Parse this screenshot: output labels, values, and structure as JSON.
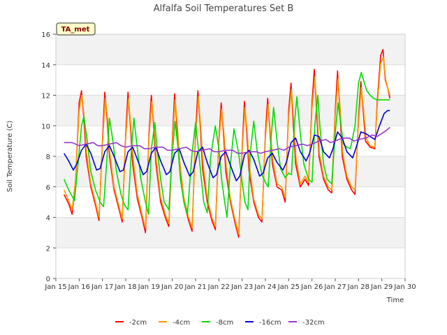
{
  "chart_data": {
    "type": "line",
    "title": "Alfalfa Soil Temperatures Set B",
    "xlabel": "Time",
    "ylabel": "Soil Temperature (C)",
    "badge": "TA_met",
    "ylim": [
      0,
      16
    ],
    "y_ticks": [
      0,
      2,
      4,
      6,
      8,
      10,
      12,
      14,
      16
    ],
    "xlim": [
      15,
      30
    ],
    "x_ticks": [
      15,
      16,
      17,
      18,
      19,
      20,
      21,
      22,
      23,
      24,
      25,
      26,
      27,
      28,
      29,
      30
    ],
    "x_tick_labels": [
      "Jan 15",
      "Jan 16",
      "Jan 17",
      "Jan 18",
      "Jan 19",
      "Jan 20",
      "Jan 21",
      "Jan 22",
      "Jan 23",
      "Jan 24",
      "Jan 25",
      "Jan 26",
      "Jan 27",
      "Jan 28",
      "Jan 29",
      "Jan 30"
    ],
    "grid": "horizontal bands",
    "legend_position": "bottom",
    "series": [
      {
        "name": "-2cm",
        "color": "#ff0000",
        "x": [
          15.35,
          15.55,
          15.7,
          15.85,
          16.0,
          16.1,
          16.2,
          16.3,
          16.5,
          16.7,
          16.85,
          17.0,
          17.1,
          17.2,
          17.3,
          17.5,
          17.7,
          17.85,
          18.0,
          18.1,
          18.2,
          18.3,
          18.5,
          18.7,
          18.85,
          19.0,
          19.1,
          19.2,
          19.3,
          19.5,
          19.7,
          19.85,
          20.0,
          20.1,
          20.2,
          20.3,
          20.5,
          20.7,
          20.85,
          21.0,
          21.1,
          21.2,
          21.3,
          21.5,
          21.7,
          21.85,
          22.0,
          22.1,
          22.2,
          22.3,
          22.5,
          22.7,
          22.85,
          23.0,
          23.1,
          23.2,
          23.3,
          23.5,
          23.7,
          23.85,
          24.0,
          24.1,
          24.2,
          24.3,
          24.5,
          24.7,
          24.85,
          25.0,
          25.1,
          25.2,
          25.3,
          25.5,
          25.7,
          25.85,
          26.0,
          26.1,
          26.2,
          26.3,
          26.5,
          26.7,
          26.85,
          27.0,
          27.1,
          27.2,
          27.3,
          27.5,
          27.7,
          27.85,
          28.0,
          28.1,
          28.2,
          28.3,
          28.5,
          28.7,
          28.8,
          28.95,
          29.05,
          29.15,
          29.25,
          29.35
        ],
        "y": [
          5.5,
          4.9,
          4.2,
          6.5,
          11.5,
          12.3,
          10.5,
          8.0,
          6.0,
          4.8,
          3.8,
          9.0,
          12.2,
          10.5,
          8.0,
          5.8,
          4.6,
          3.7,
          9.5,
          12.2,
          10.0,
          7.5,
          5.2,
          4.0,
          3.0,
          9.5,
          12.0,
          10.0,
          7.5,
          5.0,
          4.0,
          3.4,
          9.0,
          12.1,
          10.0,
          7.5,
          5.0,
          3.8,
          3.1,
          9.5,
          12.3,
          10.0,
          7.2,
          5.0,
          3.8,
          3.2,
          9.0,
          11.5,
          9.5,
          7.0,
          5.0,
          3.6,
          2.7,
          8.5,
          11.6,
          9.5,
          7.0,
          5.0,
          4.0,
          3.7,
          9.5,
          11.8,
          9.5,
          7.5,
          6.0,
          5.8,
          5.0,
          11.0,
          12.8,
          10.0,
          7.5,
          6.0,
          6.5,
          6.1,
          11.5,
          13.7,
          11.0,
          8.0,
          6.5,
          5.8,
          5.6,
          11.0,
          13.6,
          11.0,
          8.0,
          6.5,
          5.8,
          5.5,
          10.5,
          12.9,
          11.0,
          9.0,
          8.6,
          8.5,
          11.5,
          14.6,
          15.0,
          13.0,
          12.5,
          11.8
        ]
      },
      {
        "name": "-4cm",
        "color": "#ff9900",
        "x": [
          15.35,
          15.55,
          15.7,
          15.85,
          16.0,
          16.12,
          16.22,
          16.32,
          16.5,
          16.7,
          16.85,
          17.0,
          17.12,
          17.22,
          17.32,
          17.5,
          17.7,
          17.85,
          18.0,
          18.12,
          18.22,
          18.32,
          18.5,
          18.7,
          18.85,
          19.0,
          19.12,
          19.22,
          19.32,
          19.5,
          19.7,
          19.85,
          20.0,
          20.12,
          20.22,
          20.32,
          20.5,
          20.7,
          20.85,
          21.0,
          21.12,
          21.22,
          21.32,
          21.5,
          21.7,
          21.85,
          22.0,
          22.12,
          22.22,
          22.32,
          22.5,
          22.7,
          22.85,
          23.0,
          23.12,
          23.22,
          23.32,
          23.5,
          23.7,
          23.85,
          24.0,
          24.12,
          24.22,
          24.32,
          24.5,
          24.7,
          24.85,
          25.0,
          25.12,
          25.22,
          25.32,
          25.5,
          25.7,
          25.85,
          26.0,
          26.12,
          26.22,
          26.32,
          26.5,
          26.7,
          26.85,
          27.0,
          27.12,
          27.22,
          27.32,
          27.5,
          27.7,
          27.85,
          28.0,
          28.12,
          28.22,
          28.32,
          28.5,
          28.7,
          28.8,
          28.95,
          29.07,
          29.17,
          29.27,
          29.35
        ],
        "y": [
          5.8,
          5.1,
          4.5,
          6.5,
          11.0,
          12.0,
          10.5,
          8.2,
          6.2,
          5.0,
          4.0,
          8.8,
          11.8,
          10.5,
          8.2,
          6.0,
          4.8,
          3.9,
          9.2,
          11.8,
          10.0,
          7.8,
          5.5,
          4.2,
          3.3,
          9.2,
          11.6,
          10.0,
          7.7,
          5.3,
          4.2,
          3.6,
          8.8,
          11.7,
          10.0,
          7.7,
          5.3,
          4.0,
          3.3,
          9.2,
          11.9,
          10.0,
          7.5,
          5.3,
          4.0,
          3.4,
          8.8,
          11.1,
          9.5,
          7.3,
          5.2,
          3.8,
          2.9,
          8.3,
          11.2,
          9.5,
          7.3,
          5.2,
          4.2,
          3.9,
          9.2,
          11.4,
          9.5,
          7.7,
          6.2,
          6.0,
          5.3,
          10.6,
          12.4,
          10.2,
          7.8,
          6.2,
          6.7,
          6.3,
          11.1,
          13.2,
          11.0,
          8.2,
          6.7,
          6.0,
          5.8,
          10.7,
          13.1,
          11.0,
          8.2,
          6.7,
          6.0,
          5.8,
          10.2,
          12.5,
          11.0,
          9.2,
          8.7,
          8.6,
          11.2,
          14.1,
          14.5,
          13.0,
          12.4,
          12.0
        ]
      },
      {
        "name": "-8cm",
        "color": "#00dd00",
        "x": [
          15.35,
          15.55,
          15.8,
          15.95,
          16.1,
          16.2,
          16.35,
          16.5,
          16.7,
          16.9,
          17.05,
          17.2,
          17.3,
          17.45,
          17.6,
          17.8,
          17.95,
          18.1,
          18.25,
          18.35,
          18.5,
          18.65,
          18.85,
          18.98,
          19.1,
          19.25,
          19.35,
          19.5,
          19.65,
          19.85,
          20.0,
          20.12,
          20.25,
          20.35,
          20.5,
          20.65,
          20.85,
          21.0,
          21.12,
          21.25,
          21.35,
          21.5,
          21.65,
          21.85,
          22.0,
          22.12,
          22.25,
          22.35,
          22.5,
          22.65,
          22.85,
          23.0,
          23.12,
          23.25,
          23.35,
          23.5,
          23.65,
          23.85,
          24.0,
          24.12,
          24.25,
          24.35,
          24.5,
          24.65,
          24.85,
          25.0,
          25.12,
          25.25,
          25.35,
          25.5,
          25.65,
          25.85,
          26.0,
          26.12,
          26.25,
          26.35,
          26.5,
          26.65,
          26.85,
          27.0,
          27.12,
          27.25,
          27.35,
          27.5,
          27.65,
          27.85,
          28.0,
          28.12,
          28.25,
          28.35,
          28.5,
          28.65,
          28.8,
          28.95,
          29.1,
          29.2,
          29.35
        ],
        "y": [
          6.5,
          5.8,
          5.1,
          7.5,
          10.0,
          10.6,
          9.0,
          7.0,
          5.8,
          5.0,
          4.7,
          8.0,
          10.5,
          9.0,
          7.0,
          5.5,
          4.8,
          4.5,
          8.5,
          10.5,
          8.5,
          6.5,
          5.0,
          4.2,
          8.5,
          10.2,
          8.5,
          6.5,
          5.0,
          4.5,
          8.2,
          10.3,
          8.5,
          6.5,
          5.0,
          4.2,
          8.2,
          10.2,
          8.5,
          6.5,
          5.0,
          4.3,
          8.0,
          10.0,
          8.5,
          6.5,
          5.0,
          4.0,
          7.5,
          9.8,
          8.2,
          6.3,
          5.0,
          4.5,
          8.2,
          10.3,
          8.3,
          6.8,
          6.3,
          6.0,
          9.3,
          11.2,
          9.0,
          7.2,
          6.6,
          6.9,
          6.8,
          10.2,
          11.9,
          9.5,
          7.5,
          6.5,
          6.3,
          10.0,
          12.0,
          9.8,
          7.5,
          6.5,
          6.2,
          9.5,
          11.5,
          10.0,
          8.8,
          8.6,
          8.5,
          10.0,
          12.8,
          13.5,
          12.8,
          12.3,
          12.0,
          11.8,
          11.7,
          11.7,
          11.7,
          11.7,
          11.7
        ]
      },
      {
        "name": "-16cm",
        "color": "#0000cc",
        "x": [
          15.35,
          15.55,
          15.75,
          15.9,
          16.1,
          16.3,
          16.5,
          16.75,
          16.9,
          17.1,
          17.3,
          17.5,
          17.75,
          17.9,
          18.1,
          18.3,
          18.5,
          18.75,
          18.9,
          19.1,
          19.3,
          19.5,
          19.75,
          19.9,
          20.1,
          20.3,
          20.5,
          20.75,
          20.9,
          21.1,
          21.3,
          21.5,
          21.75,
          21.9,
          22.1,
          22.3,
          22.5,
          22.75,
          22.9,
          23.1,
          23.3,
          23.5,
          23.75,
          23.9,
          24.1,
          24.3,
          24.5,
          24.75,
          24.9,
          25.1,
          25.3,
          25.5,
          25.75,
          25.9,
          26.1,
          26.3,
          26.5,
          26.75,
          26.9,
          27.1,
          27.3,
          27.5,
          27.75,
          27.9,
          28.1,
          28.3,
          28.5,
          28.7,
          28.9,
          29.1,
          29.25,
          29.35
        ],
        "y": [
          8.2,
          7.7,
          7.1,
          7.5,
          8.4,
          8.8,
          8.2,
          7.1,
          7.2,
          8.3,
          8.7,
          8.0,
          7.0,
          7.1,
          8.3,
          8.6,
          7.8,
          6.8,
          7.0,
          8.2,
          8.6,
          7.7,
          6.8,
          7.0,
          8.2,
          8.5,
          7.6,
          6.7,
          7.0,
          8.3,
          8.6,
          7.6,
          6.6,
          6.8,
          8.0,
          8.3,
          7.4,
          6.4,
          6.7,
          8.1,
          8.4,
          7.8,
          6.7,
          6.9,
          7.9,
          8.2,
          7.6,
          7.1,
          7.6,
          8.9,
          9.2,
          8.3,
          7.7,
          8.2,
          9.4,
          9.3,
          8.3,
          7.9,
          8.5,
          9.6,
          9.2,
          8.3,
          7.9,
          8.6,
          9.6,
          9.5,
          9.3,
          9.1,
          10.0,
          10.8,
          11.0,
          11.0
        ]
      },
      {
        "name": "-32cm",
        "color": "#9933cc",
        "x": [
          15.35,
          15.7,
          16.0,
          16.3,
          16.6,
          16.8,
          17.0,
          17.3,
          17.6,
          17.8,
          18.0,
          18.3,
          18.6,
          18.8,
          19.0,
          19.3,
          19.6,
          19.8,
          20.0,
          20.3,
          20.6,
          20.8,
          21.0,
          21.3,
          21.6,
          21.8,
          22.0,
          22.3,
          22.6,
          22.8,
          23.0,
          23.3,
          23.6,
          23.8,
          24.0,
          24.3,
          24.6,
          24.8,
          25.0,
          25.3,
          25.6,
          25.8,
          26.0,
          26.3,
          26.6,
          26.8,
          27.0,
          27.3,
          27.6,
          27.8,
          28.0,
          28.3,
          28.6,
          28.8,
          29.0,
          29.2,
          29.35
        ],
        "y": [
          8.9,
          8.9,
          8.7,
          8.8,
          8.9,
          8.7,
          8.7,
          8.8,
          8.9,
          8.7,
          8.6,
          8.7,
          8.7,
          8.5,
          8.5,
          8.6,
          8.6,
          8.4,
          8.4,
          8.5,
          8.6,
          8.4,
          8.3,
          8.4,
          8.5,
          8.3,
          8.3,
          8.4,
          8.4,
          8.2,
          8.2,
          8.3,
          8.3,
          8.2,
          8.3,
          8.4,
          8.5,
          8.4,
          8.6,
          8.7,
          8.8,
          8.7,
          8.8,
          9.0,
          9.1,
          8.9,
          9.0,
          9.2,
          9.2,
          9.0,
          9.1,
          9.2,
          9.4,
          9.3,
          9.5,
          9.7,
          9.9
        ]
      }
    ]
  }
}
